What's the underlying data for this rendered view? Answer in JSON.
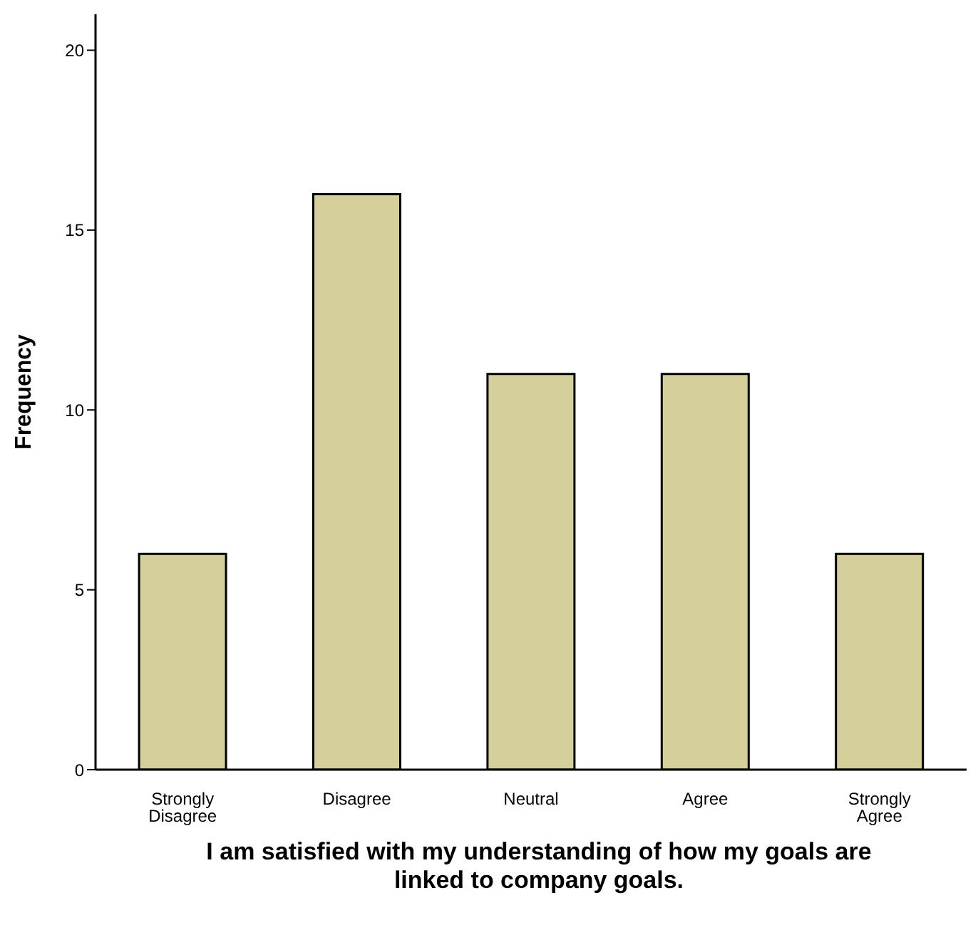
{
  "chart_data": {
    "type": "bar",
    "xlabel": "I am satisfied with my understanding of how my goals are linked to company goals.",
    "ylabel": "Frequency",
    "categories": [
      "Strongly Disagree",
      "Disagree",
      "Neutral",
      "Agree",
      "Strongly Agree"
    ],
    "values": [
      6,
      16,
      11,
      11,
      6
    ],
    "color": "#d4cf9b",
    "ylim": [
      0,
      21
    ],
    "yticks": [
      0,
      5,
      10,
      15,
      20
    ],
    "grid": false,
    "legend": false
  }
}
